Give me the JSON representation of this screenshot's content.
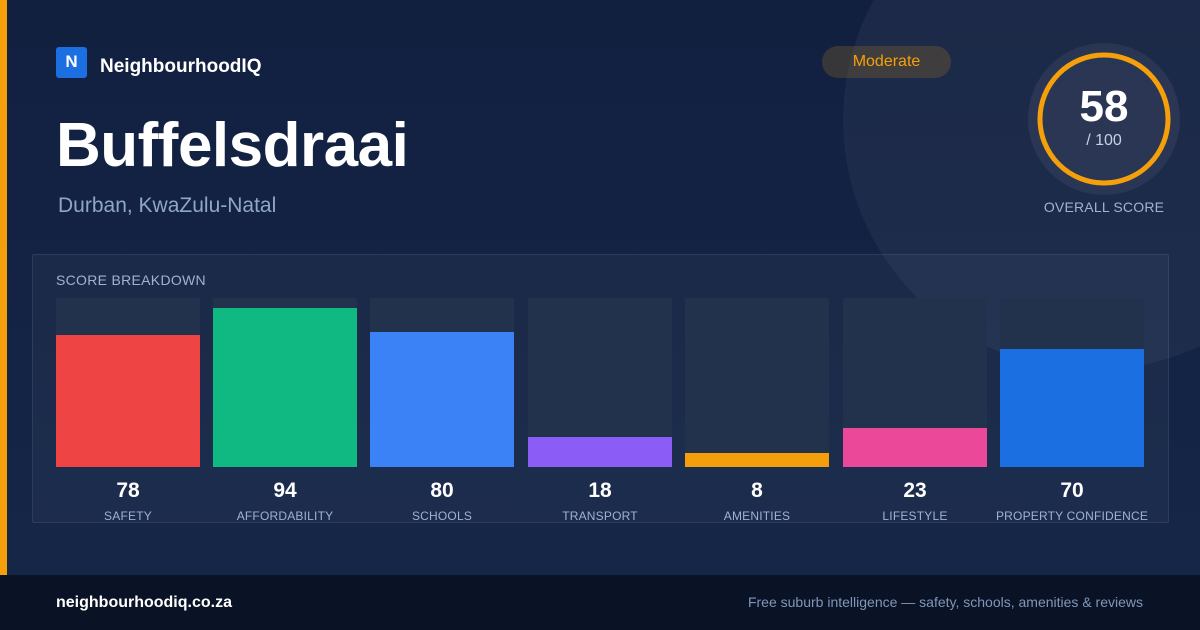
{
  "brand": {
    "logo_letter": "N",
    "name": "NeighbourhoodIQ"
  },
  "suburb": {
    "name": "Buffelsdraai",
    "location": "Durban, KwaZulu-Natal"
  },
  "badge": {
    "label": "Moderate",
    "color": "#f5a00b"
  },
  "overall": {
    "score": "58",
    "max": "/ 100",
    "label": "OVERALL SCORE",
    "fraction": 0.58,
    "ring_color": "#f5a00b"
  },
  "breakdown": {
    "title": "SCORE BREAKDOWN",
    "items": [
      {
        "value": "78",
        "label": "SAFETY",
        "fraction": 0.78,
        "color": "#ef4444"
      },
      {
        "value": "94",
        "label": "AFFORDABILITY",
        "fraction": 0.94,
        "color": "#10b981"
      },
      {
        "value": "80",
        "label": "SCHOOLS",
        "fraction": 0.8,
        "color": "#3b82f6"
      },
      {
        "value": "18",
        "label": "TRANSPORT",
        "fraction": 0.18,
        "color": "#8b5cf6"
      },
      {
        "value": "8",
        "label": "AMENITIES",
        "fraction": 0.08,
        "color": "#f59e0b"
      },
      {
        "value": "23",
        "label": "LIFESTYLE",
        "fraction": 0.23,
        "color": "#ec4899"
      },
      {
        "value": "70",
        "label": "PROPERTY CONFIDENCE",
        "fraction": 0.7,
        "color": "#1c6fe0"
      }
    ]
  },
  "footer": {
    "domain": "neighbourhoodiq.co.za",
    "tagline": "Free suburb intelligence — safety, schools, amenities & reviews"
  }
}
